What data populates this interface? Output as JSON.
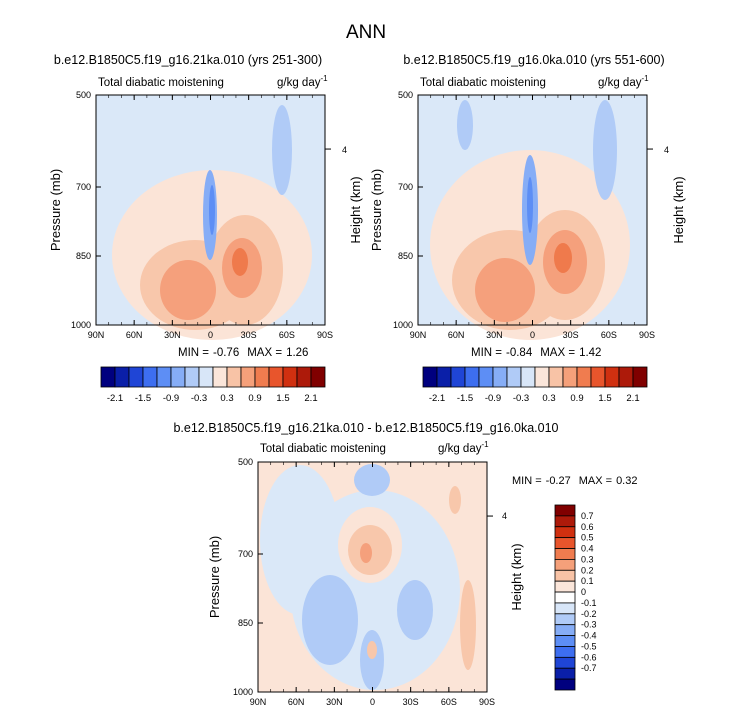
{
  "figure": {
    "title": "ANN"
  },
  "colors": {
    "levels_top": [
      "#00007f",
      "#0a1fa8",
      "#1f45d6",
      "#3d6ef0",
      "#5d8ef5",
      "#86adf6",
      "#b0cbf7",
      "#d8e6f8",
      "#fbe6da",
      "#f8c3a6",
      "#f5a07a",
      "#f07c4f",
      "#e8552c",
      "#d03010",
      "#ad1a0a",
      "#800000"
    ],
    "levels_diff": [
      "#00007f",
      "#0a1fa8",
      "#1f45d6",
      "#3d6ef0",
      "#5d8ef5",
      "#86adf6",
      "#b0cbf7",
      "#d8e6f8",
      "#ffffff",
      "#fbe6da",
      "#f8c3a6",
      "#f5a07a",
      "#f07c4f",
      "#e8552c",
      "#d03010",
      "#ad1a0a",
      "#800000"
    ]
  },
  "chart_data": [
    {
      "type": "heatmap",
      "title": "b.e12.B1850C5.f19_g16.21ka.010 (yrs 251-300)",
      "left_label": "Total diabatic moistening",
      "units": "g/kg day",
      "units_exp": "-1",
      "ylabel": "Pressure (mb)",
      "y2label": "Height (km)",
      "y2ticks": [
        "4"
      ],
      "xticks": [
        "90N",
        "60N",
        "30N",
        "0",
        "30S",
        "60S",
        "90S"
      ],
      "yticks": [
        "500",
        "700",
        "850",
        "1000"
      ],
      "stats": {
        "min_label": "MIN =",
        "min": "-0.76",
        "max_label": "MAX =",
        "max": "1.26"
      },
      "colorbar_ticks": [
        "-2.1",
        "-1.5",
        "-0.9",
        "-0.3",
        "0.3",
        "0.9",
        "1.5",
        "2.1"
      ],
      "field_min": -0.76,
      "field_max": 1.26
    },
    {
      "type": "heatmap",
      "title": "b.e12.B1850C5.f19_g16.0ka.010 (yrs 551-600)",
      "left_label": "Total diabatic moistening",
      "units": "g/kg day",
      "units_exp": "-1",
      "ylabel": "Pressure (mb)",
      "y2label": "Height (km)",
      "y2ticks": [
        "4"
      ],
      "xticks": [
        "90N",
        "60N",
        "30N",
        "0",
        "30S",
        "60S",
        "90S"
      ],
      "yticks": [
        "500",
        "700",
        "850",
        "1000"
      ],
      "stats": {
        "min_label": "MIN =",
        "min": "-0.84",
        "max_label": "MAX =",
        "max": "1.42"
      },
      "colorbar_ticks": [
        "-2.1",
        "-1.5",
        "-0.9",
        "-0.3",
        "0.3",
        "0.9",
        "1.5",
        "2.1"
      ],
      "field_min": -0.84,
      "field_max": 1.42
    },
    {
      "type": "heatmap",
      "title": "b.e12.B1850C5.f19_g16.21ka.010 - b.e12.B1850C5.f19_g16.0ka.010",
      "left_label": "Total diabatic moistening",
      "units": "g/kg day",
      "units_exp": "-1",
      "ylabel": "Pressure (mb)",
      "y2label": "Height (km)",
      "y2ticks": [
        "4"
      ],
      "xticks": [
        "90N",
        "60N",
        "30N",
        "0",
        "30S",
        "60S",
        "90S"
      ],
      "yticks": [
        "500",
        "700",
        "850",
        "1000"
      ],
      "stats": {
        "min_label": "MIN =",
        "min": "-0.27",
        "max_label": "MAX =",
        "max": "0.32"
      },
      "colorbar_ticks": [
        "0.7",
        "0.6",
        "0.5",
        "0.4",
        "0.3",
        "0.2",
        "0.1",
        "0",
        "-0.1",
        "-0.2",
        "-0.3",
        "-0.4",
        "-0.5",
        "-0.6",
        "-0.7"
      ],
      "field_min": -0.27,
      "field_max": 0.32
    }
  ]
}
